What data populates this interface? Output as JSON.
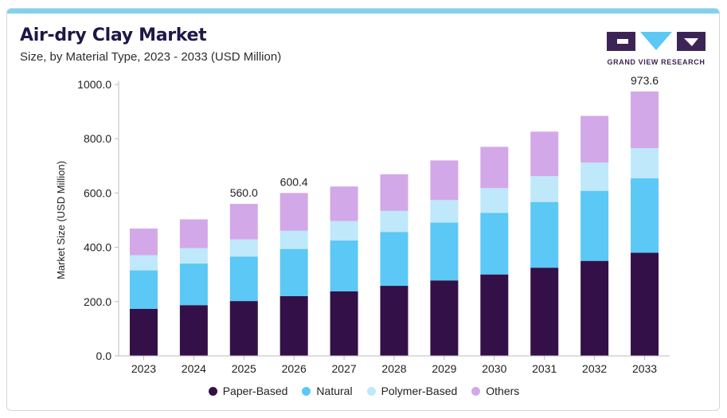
{
  "header": {
    "title": "Air-dry Clay Market",
    "subtitle": "Size, by Material Type, 2023 - 2033 (USD Million)"
  },
  "brand": {
    "logo_text": "GRAND VIEW RESEARCH",
    "colors": {
      "dark": "#3c2556",
      "accent": "#5bc8f5",
      "topbar": "#7fd3f0"
    }
  },
  "chart_data": {
    "type": "bar",
    "stacked": true,
    "categories": [
      "2023",
      "2024",
      "2025",
      "2026",
      "2027",
      "2028",
      "2029",
      "2030",
      "2031",
      "2032",
      "2033"
    ],
    "series": [
      {
        "name": "Paper-Based",
        "color": "#341048",
        "values": [
          173,
          187,
          202,
          220,
          238,
          258,
          278,
          300,
          325,
          350,
          380
        ]
      },
      {
        "name": "Natural",
        "color": "#5bc8f5",
        "values": [
          142,
          153,
          164,
          174,
          187,
          198,
          213,
          227,
          242,
          258,
          274
        ]
      },
      {
        "name": "Polymer-Based",
        "color": "#bfe8fa",
        "values": [
          56,
          57,
          63,
          67,
          72,
          78,
          83,
          91,
          95,
          104,
          111
        ]
      },
      {
        "name": "Others",
        "color": "#d3a8e8",
        "values": [
          98,
          106,
          131,
          139,
          127,
          135,
          146,
          152,
          164,
          172,
          209
        ]
      }
    ],
    "data_labels": [
      {
        "category": "2025",
        "text": "560.0"
      },
      {
        "category": "2026",
        "text": "600.4"
      },
      {
        "category": "2033",
        "text": "973.6"
      }
    ],
    "ylabel": "Market Size (USD Million)",
    "xlabel": "",
    "ylim": [
      0,
      1000
    ],
    "yticks": [
      "0.0",
      "200.0",
      "400.0",
      "600.0",
      "800.0",
      "1000.0"
    ],
    "grid": false,
    "legend_position": "bottom"
  }
}
